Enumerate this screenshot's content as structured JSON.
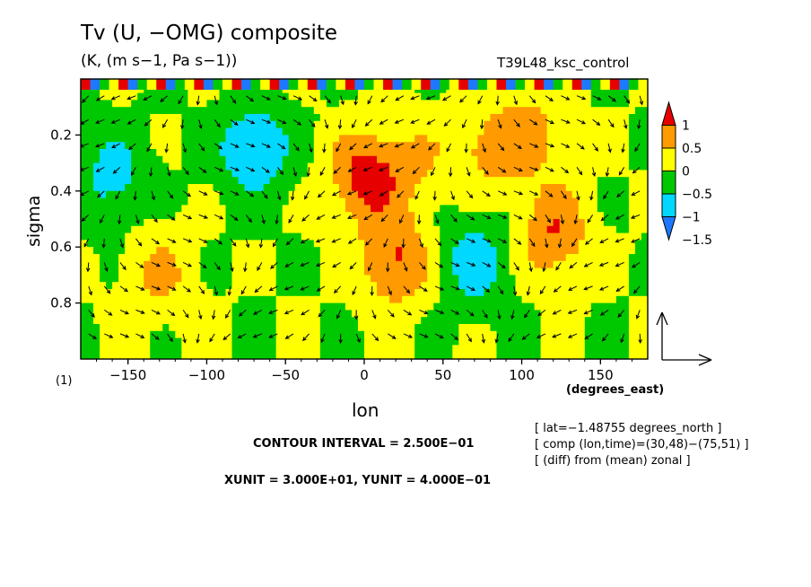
{
  "chart_data": {
    "type": "heatmap",
    "title": "Tv (U, −OMG) composite",
    "subtitle": "(K, (m s−1, Pa s−1))",
    "run_name": "T39L48_ksc_control",
    "panel_label": "(1)",
    "xlabel": "lon",
    "xunit": "(degrees_east)",
    "ylabel": "sigma",
    "xlim": [
      -180,
      180
    ],
    "ylim": [
      1.0,
      0.0
    ],
    "xticks": [
      -150,
      -100,
      -50,
      0,
      50,
      100,
      150
    ],
    "yticks": [
      0.2,
      0.4,
      0.6,
      0.8
    ],
    "contour_interval": "CONTOUR INTERVAL = 2.500E−01",
    "vector_units": "XUNIT = 3.000E+01, YUNIT = 4.000E−01",
    "info_lines": [
      "[ lat=−1.48755 degrees_north ]",
      "[ comp (lon,time)=(30,48)−(75,51) ]",
      "[ (diff) from (mean) zonal ]"
    ],
    "colorbar": {
      "levels": [
        -2,
        -1.5,
        -1,
        -0.5,
        0,
        0.5,
        1,
        1.5
      ],
      "labels": [
        "1",
        "0.5",
        "0",
        "−0.5",
        "−1",
        "−1.5"
      ],
      "colors": [
        "#1e78ff",
        "#00d8ff",
        "#00c800",
        "#ffff00",
        "#ff9a00",
        "#e60000"
      ]
    },
    "features": [
      {
        "lon": 0,
        "sigma": 0.35,
        "value": 1.2
      },
      {
        "lon": 20,
        "sigma": 0.65,
        "value": 1.1
      },
      {
        "lon": 120,
        "sigma": 0.55,
        "value": 1.0
      },
      {
        "lon": -130,
        "sigma": 0.7,
        "value": 0.6
      },
      {
        "lon": -70,
        "sigma": 0.25,
        "value": -1.0
      },
      {
        "lon": -160,
        "sigma": 0.35,
        "value": -0.7
      },
      {
        "lon": 70,
        "sigma": 0.65,
        "value": -0.8
      },
      {
        "lon": 30,
        "sigma": 0.3,
        "value": 0.5
      },
      {
        "lon": 75,
        "sigma": 0.25,
        "value": 0.6
      },
      {
        "lon": 105,
        "sigma": 0.2,
        "value": 0.7
      }
    ]
  }
}
